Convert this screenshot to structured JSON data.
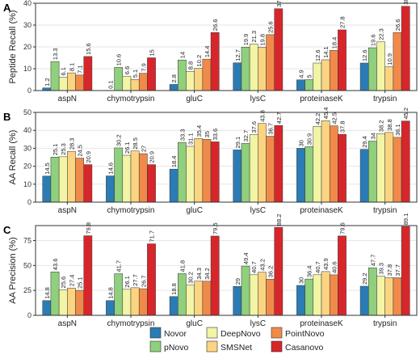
{
  "colors": {
    "Novor": "#2b7bb4",
    "pNovo": "#8fcf7d",
    "DeepNovo": "#f2f4a6",
    "SMSNet": "#fbd482",
    "PointNovo": "#f08a4b",
    "Casanovo": "#d7262b",
    "grid": "#e6e6e6",
    "panel_border": "#333333"
  },
  "legend": {
    "entries": [
      {
        "name": "Novor",
        "color": "#2b7bb4"
      },
      {
        "name": "pNovo",
        "color": "#8fcf7d"
      },
      {
        "name": "DeepNovo",
        "color": "#f2f4a6"
      },
      {
        "name": "SMSNet",
        "color": "#fbd482"
      },
      {
        "name": "PointNovo",
        "color": "#f08a4b"
      },
      {
        "name": "Casanovo",
        "color": "#d7262b"
      }
    ]
  },
  "chart_data": [
    {
      "type": "bar",
      "panel_label": "A",
      "ylabel": "Peptide Recall (%)",
      "ylim": [
        0,
        40
      ],
      "yticks": [
        "0",
        "10",
        "20",
        "30",
        "40"
      ],
      "grid": true,
      "categories": [
        "aspN",
        "chymotrypsin",
        "gluC",
        "lysC",
        "proteinaseK",
        "trypsin"
      ],
      "series": [
        {
          "name": "Novor",
          "values": [
            1.2,
            0.1,
            2.8,
            12.7,
            4.9,
            12.6
          ],
          "labels": [
            "1.2",
            "0.1",
            "2.8",
            "12.7",
            "4.9",
            "12.6"
          ]
        },
        {
          "name": "pNovo",
          "values": [
            13.3,
            10.6,
            14,
            19.9,
            5,
            19.6
          ],
          "labels": [
            "13.3",
            "10.6",
            "14",
            "19.9",
            "5",
            "19.6"
          ]
        },
        {
          "name": "DeepNovo",
          "values": [
            6.1,
            6.6,
            8.8,
            21.3,
            12.6,
            22.3
          ],
          "labels": [
            "6.1",
            "6.6",
            "8.8",
            "21.3",
            "12.6",
            "22.3"
          ]
        },
        {
          "name": "SMSNet",
          "values": [
            8.1,
            5.1,
            10.2,
            19.8,
            14.1,
            10.9
          ],
          "labels": [
            "8.1",
            "5.1",
            "10.2",
            "19.8",
            "14.1",
            "10.9"
          ]
        },
        {
          "name": "PointNovo",
          "values": [
            7.1,
            7.9,
            14.4,
            25.6,
            18.4,
            26.6
          ],
          "labels": [
            "7.1",
            "7.9",
            "14.4",
            "25.6",
            "18.4",
            "26.6"
          ]
        },
        {
          "name": "Casanovo",
          "values": [
            15.6,
            15,
            26.6,
            37.5,
            27.8,
            38.6
          ],
          "labels": [
            "15.6",
            "15",
            "26.6",
            "37.5",
            "27.8",
            "38.6"
          ]
        }
      ]
    },
    {
      "type": "bar",
      "panel_label": "B",
      "ylabel": "AA Recall (%)",
      "ylim": [
        0,
        50
      ],
      "yticks": [
        "0",
        "10",
        "20",
        "30",
        "40",
        "50"
      ],
      "grid": true,
      "categories": [
        "aspN",
        "chymotrypsin",
        "gluC",
        "lysC",
        "proteinaseK",
        "trypsin"
      ],
      "series": [
        {
          "name": "Novor",
          "values": [
            14.5,
            14.6,
            18.4,
            29.1,
            30,
            29.4
          ],
          "labels": [
            "14.5",
            "14.6",
            "18.4",
            "29.1",
            "30",
            "29.4"
          ]
        },
        {
          "name": "pNovo",
          "values": [
            25.1,
            30.2,
            33.3,
            32.7,
            30.9,
            34
          ],
          "labels": [
            "25.1",
            "30.2",
            "33.3",
            "32.7",
            "30.9",
            "34"
          ]
        },
        {
          "name": "DeepNovo",
          "values": [
            25.3,
            26.1,
            31.1,
            37.6,
            42.2,
            38.2
          ],
          "labels": [
            "25.3",
            "26.1",
            "31.1",
            "37.6",
            "42.2",
            "38.2"
          ]
        },
        {
          "name": "SMSNet",
          "values": [
            28.3,
            28.5,
            35.4,
            43.8,
            45.4,
            38.8
          ],
          "labels": [
            "28.3",
            "28.5",
            "35.4",
            "43.8",
            "45.4",
            "38.8"
          ]
        },
        {
          "name": "PointNovo",
          "values": [
            24.5,
            27,
            35,
            36.7,
            42.5,
            36.1
          ],
          "labels": [
            "24.5",
            "27",
            "35",
            "36.7",
            "42.5",
            "36.1"
          ]
        },
        {
          "name": "Casanovo",
          "values": [
            20.9,
            20.9,
            33.6,
            42.7,
            37.8,
            45.2
          ],
          "labels": [
            "20.9",
            "20.9",
            "33.6",
            "42.7",
            "37.8",
            "45.2"
          ]
        }
      ]
    },
    {
      "type": "bar",
      "panel_label": "C",
      "ylabel": "AA Precision (%)",
      "ylim": [
        0,
        90
      ],
      "yticks": [
        "0",
        "25",
        "50",
        "75"
      ],
      "ytick_values": [
        0,
        25,
        50,
        75
      ],
      "grid": true,
      "categories": [
        "aspN",
        "chymotrypsin",
        "gluC",
        "lysC",
        "proteinaseK",
        "trypsin"
      ],
      "series": [
        {
          "name": "Novor",
          "values": [
            14.8,
            14.8,
            18.8,
            29,
            30,
            29.2
          ],
          "labels": [
            "14.8",
            "14.8",
            "18.8",
            "29",
            "30",
            "29.2"
          ]
        },
        {
          "name": "pNovo",
          "values": [
            43.6,
            41.7,
            41.8,
            49.4,
            36.4,
            47.7
          ],
          "labels": [
            "43.6",
            "41.7",
            "41.8",
            "49.4",
            "36.4",
            "47.7"
          ]
        },
        {
          "name": "DeepNovo",
          "values": [
            25.6,
            26.1,
            30.2,
            40.7,
            40.7,
            39.3
          ],
          "labels": [
            "25.6",
            "26.1",
            "30.2",
            "40.7",
            "40.7",
            "39.3"
          ]
        },
        {
          "name": "SMSNet",
          "values": [
            27.4,
            27.7,
            34.3,
            43.2,
            43.9,
            37.8
          ],
          "labels": [
            "27.4",
            "27.7",
            "34.3",
            "43.2",
            "43.9",
            "37.8"
          ]
        },
        {
          "name": "PointNovo",
          "values": [
            25.1,
            26.7,
            34.2,
            36.2,
            40.6,
            37.7
          ],
          "labels": [
            "25.1",
            "26.7",
            "34.2",
            "36.2",
            "40.6",
            "37.7"
          ]
        },
        {
          "name": "Casanovo",
          "values": [
            79.8,
            71.7,
            79.5,
            88.2,
            79.6,
            89.1
          ],
          "labels": [
            "79.8",
            "71.7",
            "79.5",
            "88.2",
            "79.6",
            "89.1"
          ]
        }
      ]
    }
  ]
}
